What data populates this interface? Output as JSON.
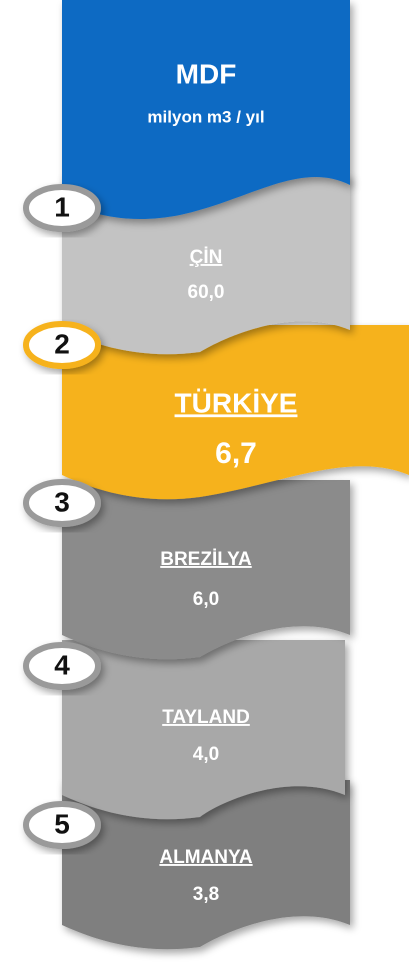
{
  "header": {
    "title": "MDF",
    "subtitle": "milyon m3 / yıl"
  },
  "items": [
    {
      "rank": "1",
      "country": "ÇİN",
      "value": "60,0"
    },
    {
      "rank": "2",
      "country": "TÜRKİYE",
      "value": "6,7"
    },
    {
      "rank": "3",
      "country": "BREZİLYA",
      "value": "6,0"
    },
    {
      "rank": "4",
      "country": "TAYLAND",
      "value": "4,0"
    },
    {
      "rank": "5",
      "country": "ALMANYA",
      "value": "3,8"
    }
  ]
}
